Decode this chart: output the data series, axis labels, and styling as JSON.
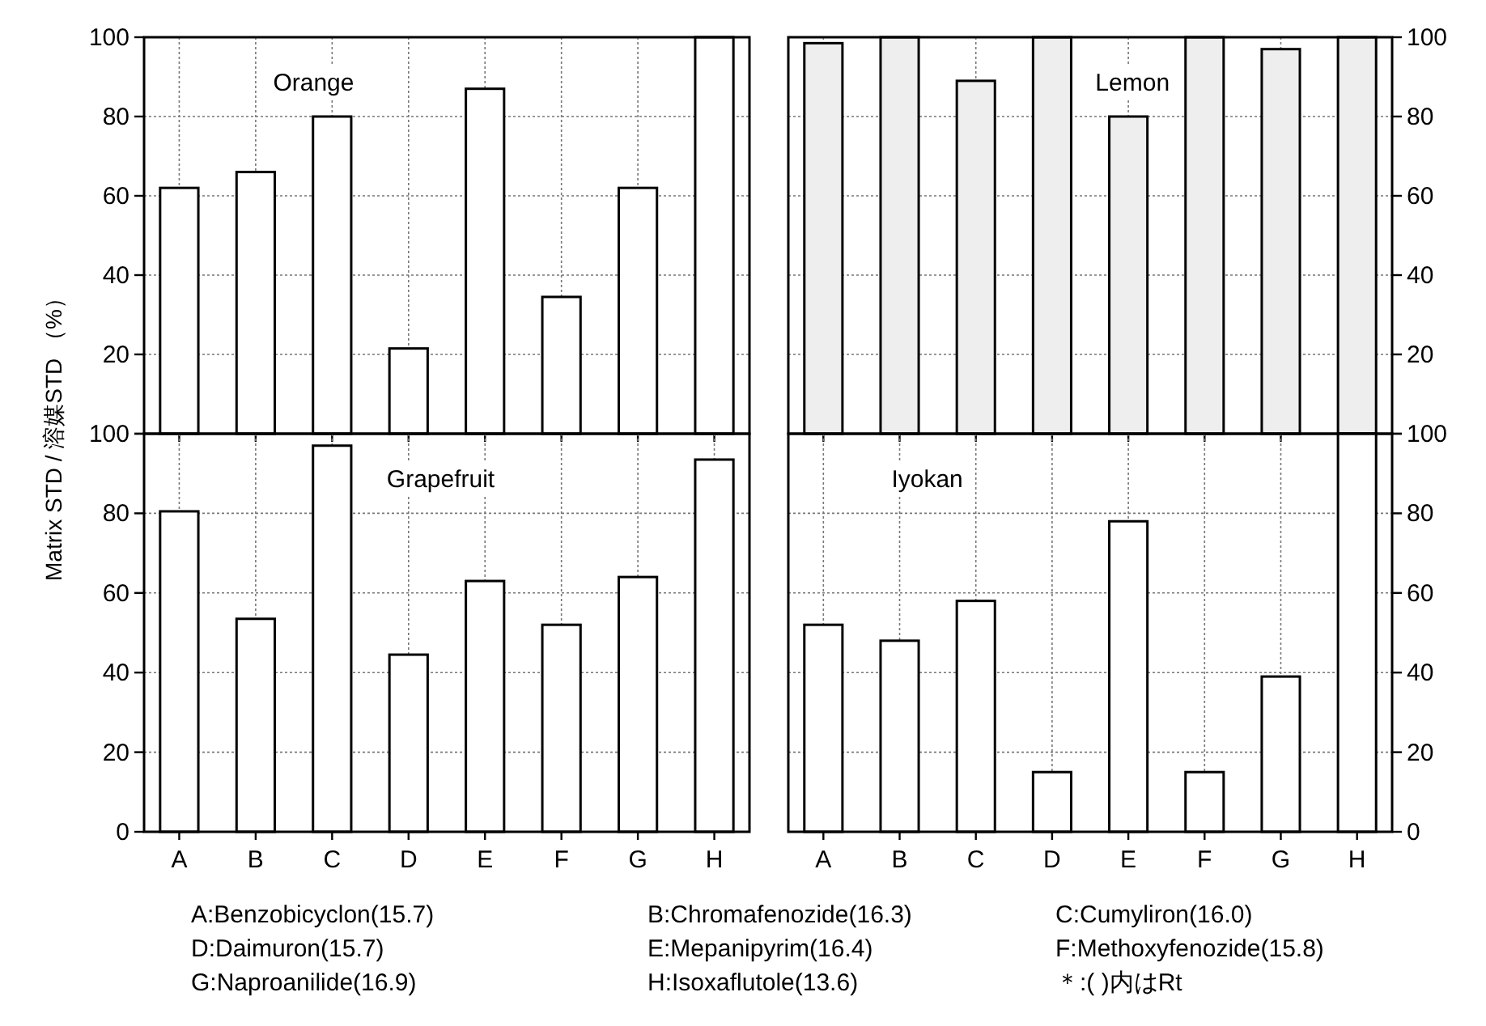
{
  "chart_data": [
    {
      "type": "bar",
      "title": "Orange",
      "ylabel": "Matrix STD / 溶媒STD （%）",
      "categories": [
        null,
        null,
        null,
        null,
        null,
        null,
        null,
        null
      ],
      "values": [
        62,
        66,
        80,
        21.5,
        87,
        34.5,
        62,
        100
      ],
      "color": "#ffffff",
      "ylim": [
        0,
        100
      ],
      "yticks": [
        {
          "value": 0,
          "label": null
        },
        20,
        40,
        60,
        80,
        100
      ],
      "grid": true,
      "tick_labels": "y"
    },
    {
      "type": "bar",
      "title": "Lemon",
      "categories": [
        null,
        null,
        null,
        null,
        null,
        null,
        null,
        null
      ],
      "values": [
        98.5,
        100,
        89,
        100,
        80,
        100,
        97,
        100
      ],
      "color": "#eeeeee",
      "ylim": [
        0,
        100
      ],
      "yticks": [
        {
          "value": 0,
          "label": null
        },
        20,
        40,
        60,
        80,
        100
      ],
      "grid": true,
      "tick_labels": "y"
    },
    {
      "type": "bar",
      "title": "Grapefruit",
      "categories": [
        "A",
        "B",
        "C",
        "D",
        "E",
        "F",
        "G",
        "H"
      ],
      "values": [
        80.5,
        53.5,
        97,
        44.5,
        63,
        52,
        64,
        93.5
      ],
      "color": "#ffffff",
      "ylim": [
        0,
        100
      ],
      "yticks": [
        0,
        20,
        40,
        60,
        80,
        100
      ],
      "grid": true
    },
    {
      "type": "bar",
      "title": "Iyokan",
      "categories": [
        "A",
        "B",
        "C",
        "D",
        "E",
        "F",
        "G",
        "H"
      ],
      "values": [
        52,
        48,
        58,
        15,
        78,
        15,
        39,
        100
      ],
      "color": "#ffffff",
      "ylim": [
        0,
        100
      ],
      "yticks": [
        0,
        20,
        40,
        60,
        80,
        100
      ],
      "grid": true
    },
    {
      "type": "other",
      "annotations": [
        "A:Benzobicyclon(15.7)",
        "B:Chromafenozide(16.3)",
        "C:Cumyliron(16.0)",
        "D:Daimuron(15.7)",
        "E:Mepanipyrim(16.4)",
        "F:Methoxyfenozide(15.8)",
        "G:Naproanilide(16.9)",
        "H:Isoxaflutole(13.6)",
        "＊:( )内はRt"
      ]
    }
  ]
}
